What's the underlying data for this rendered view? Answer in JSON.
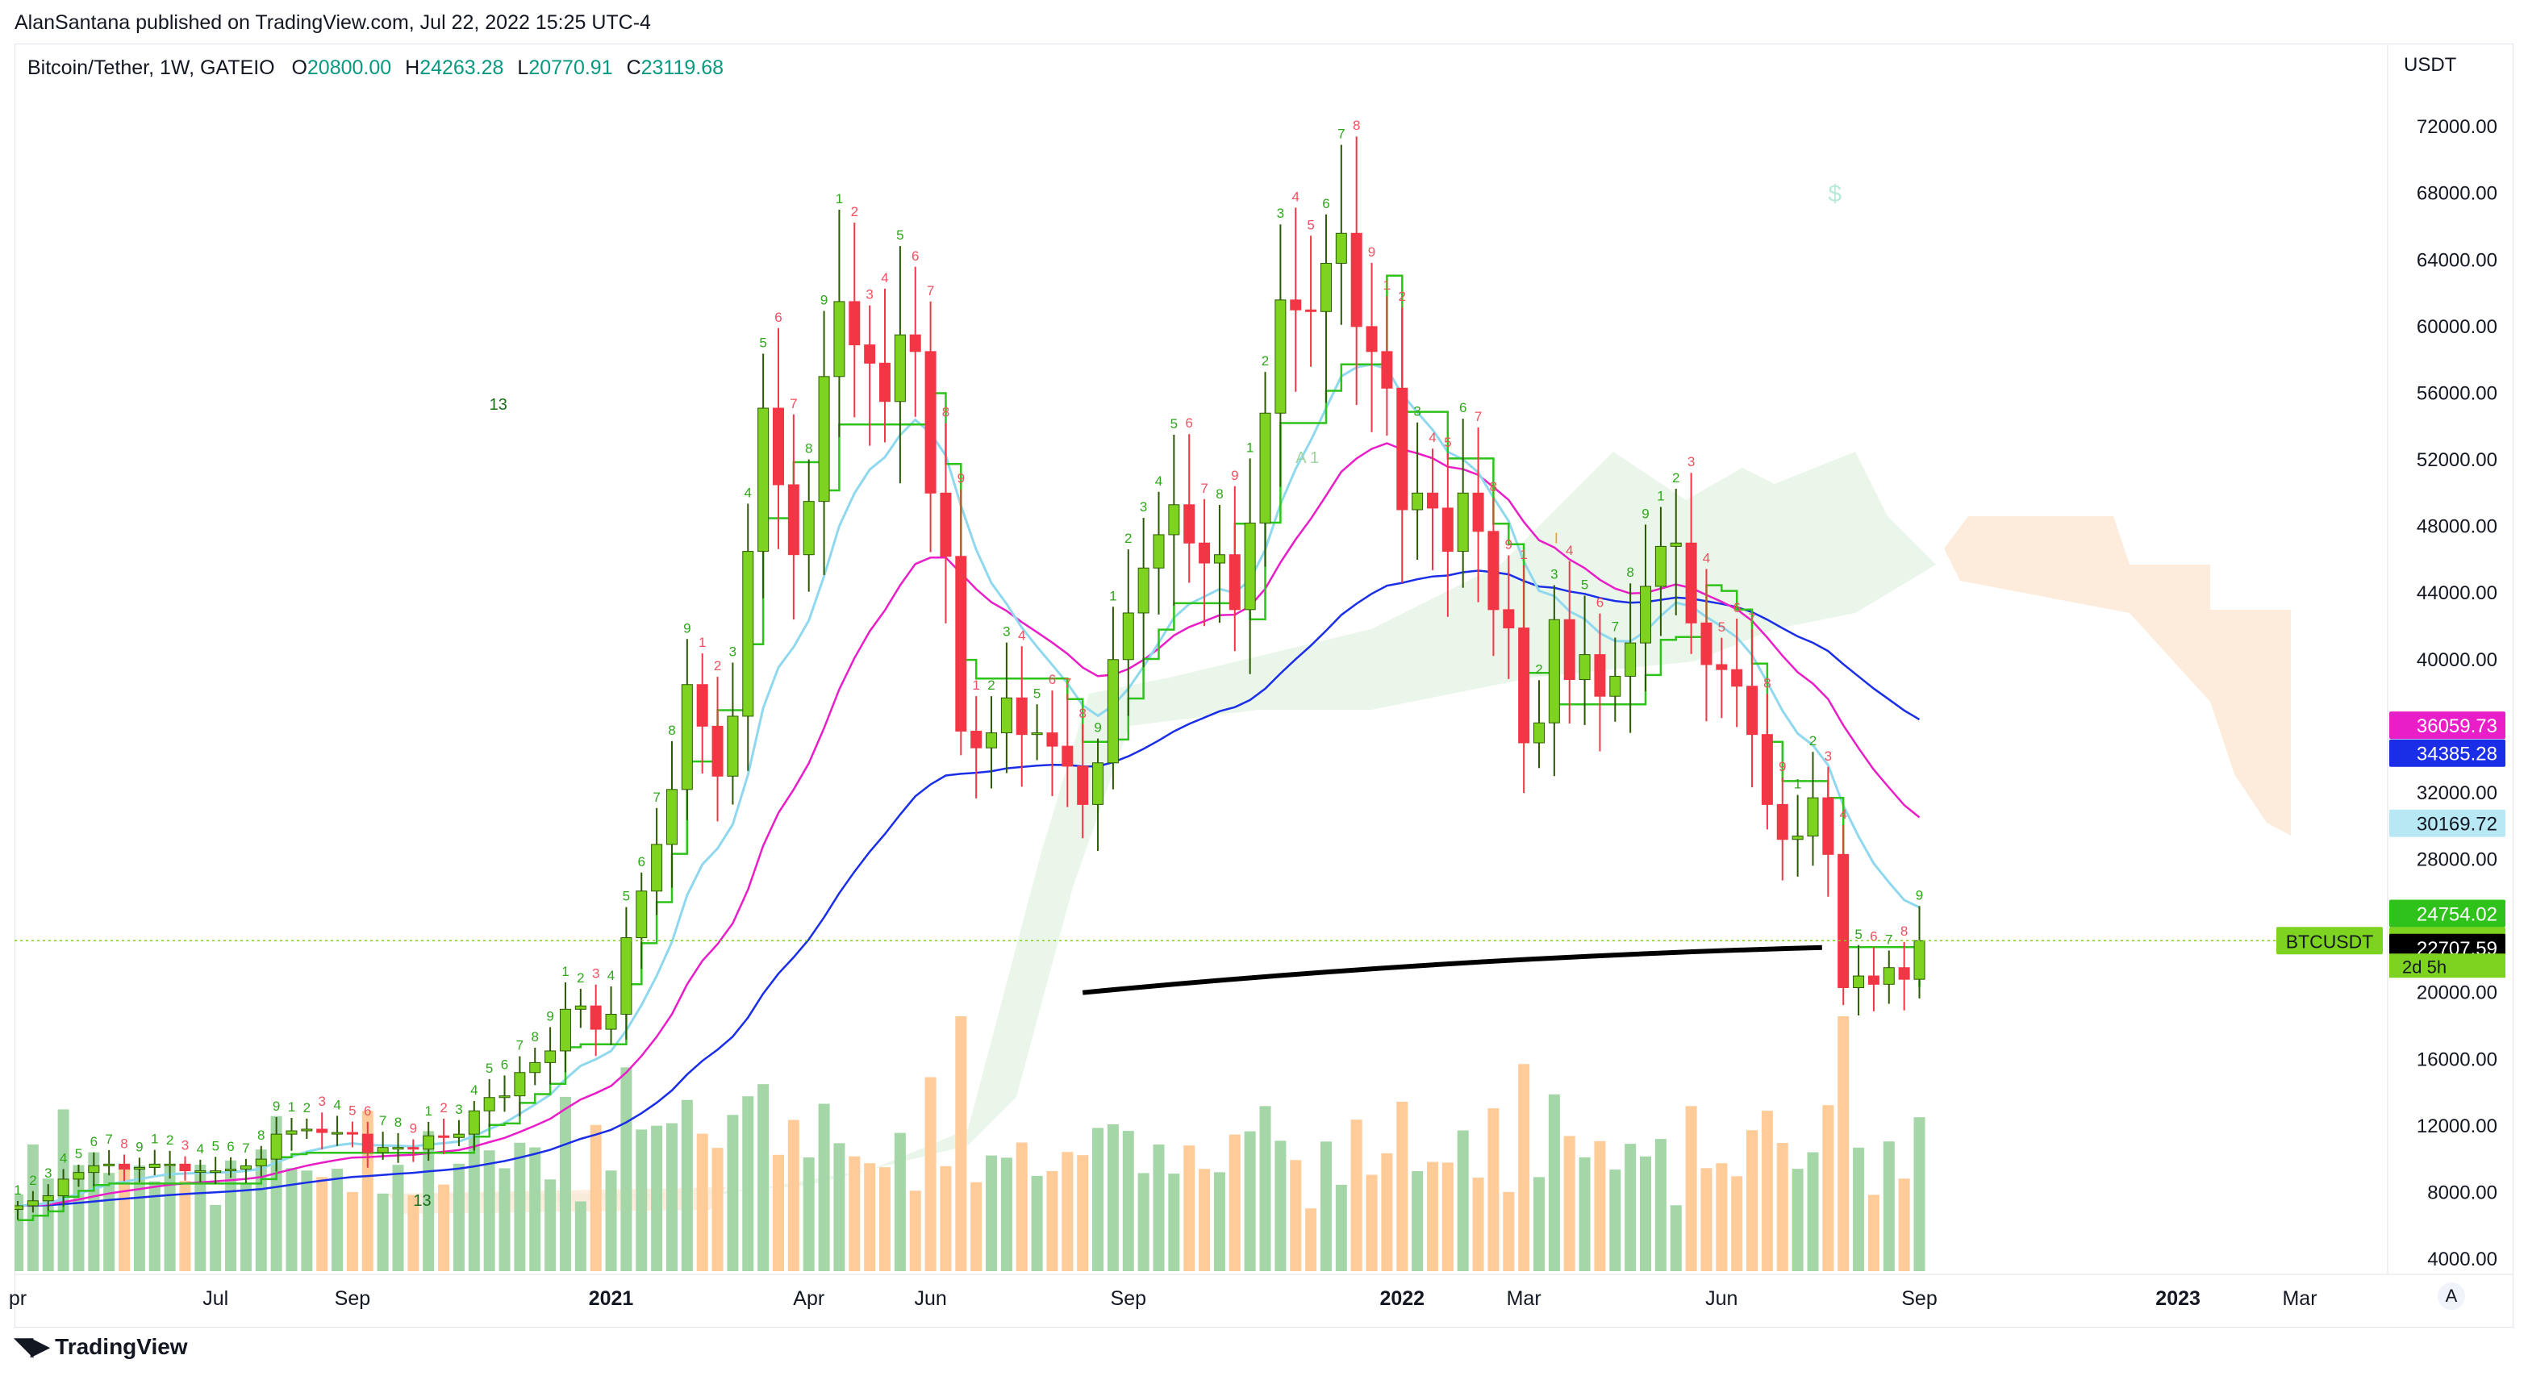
{
  "publisher_line": "AlanSantana published on TradingView.com, Jul 22, 2022 15:25 UTC-4",
  "symbol": {
    "name": "Bitcoin/Tether, 1W, GATEIO",
    "o_label": "O",
    "o_value": "20800.00",
    "h_label": "H",
    "h_value": "24263.28",
    "l_label": "L",
    "l_value": "20770.91",
    "c_label": "C",
    "c_value": "23119.68"
  },
  "footer": {
    "brand": "TradingView"
  },
  "scale_button": "A",
  "colors": {
    "up": "#7ed321",
    "down": "#f23645",
    "vol_up": "#a5d6a7",
    "vol_down": "#ffcc99",
    "ema_pink": "#e91ec8",
    "ema_blue": "#1a2ee8",
    "ema_cyan": "#8fd8ee",
    "trail_green": "#2ec21a",
    "sma_black": "#000000",
    "cloud_green": "#e6f4e6",
    "cloud_orange": "#fde7d2"
  },
  "chart_data": {
    "type": "candlestick",
    "currency_label": "USDT",
    "ylim": [
      4000,
      76000
    ],
    "y_ticks": [
      "72000.00",
      "68000.00",
      "64000.00",
      "60000.00",
      "56000.00",
      "52000.00",
      "48000.00",
      "44000.00",
      "40000.00",
      "36000.00",
      "32000.00",
      "28000.00",
      "24000.00",
      "20000.00",
      "16000.00",
      "12000.00",
      "8000.00",
      "4000.00"
    ],
    "x_ticks": [
      {
        "label": "pr",
        "bold": false,
        "week": 0
      },
      {
        "label": "Jul",
        "bold": false,
        "week": 13
      },
      {
        "label": "Sep",
        "bold": false,
        "week": 22
      },
      {
        "label": "2021",
        "bold": true,
        "week": 39
      },
      {
        "label": "Apr",
        "bold": false,
        "week": 52
      },
      {
        "label": "Jun",
        "bold": false,
        "week": 60
      },
      {
        "label": "Sep",
        "bold": false,
        "week": 73
      },
      {
        "label": "2022",
        "bold": true,
        "week": 91
      },
      {
        "label": "Mar",
        "bold": false,
        "week": 99
      },
      {
        "label": "Jun",
        "bold": false,
        "week": 112
      },
      {
        "label": "Sep",
        "bold": false,
        "week": 125
      },
      {
        "label": "2023",
        "bold": true,
        "week": 142
      },
      {
        "label": "Mar",
        "bold": false,
        "week": 150
      }
    ],
    "close": [
      7200,
      7500,
      7800,
      8800,
      9200,
      9600,
      9700,
      9400,
      9500,
      9700,
      9700,
      9300,
      9300,
      9300,
      9400,
      9600,
      10000,
      11500,
      11700,
      11800,
      11600,
      11600,
      11500,
      10400,
      10700,
      10700,
      10600,
      11400,
      11300,
      11500,
      12900,
      13700,
      13800,
      15200,
      15800,
      16500,
      19000,
      19200,
      17800,
      18700,
      23300,
      26100,
      28900,
      32200,
      38500,
      36000,
      33000,
      36600,
      46500,
      55100,
      50500,
      46300,
      49500,
      57000,
      61500,
      58900,
      57800,
      55500,
      59500,
      58500,
      50000,
      46200,
      35700,
      34700,
      35600,
      37700,
      35500,
      35600,
      34800,
      33600,
      31300,
      33800,
      40000,
      42800,
      45500,
      47500,
      49300,
      47000,
      45800,
      46300,
      43000,
      48200,
      54800,
      61600,
      61000,
      60900,
      63800,
      65600,
      60000,
      58500,
      56300,
      49000,
      50000,
      49100,
      46500,
      50000,
      47700,
      43000,
      41900,
      35000,
      36200,
      42400,
      38800,
      40300,
      37800,
      39000,
      41000,
      44400,
      46800,
      47000,
      42200,
      39700,
      39400,
      38400,
      35500,
      31300,
      29200,
      29400,
      31700,
      28300,
      20300,
      21000,
      20500,
      21500,
      20800,
      23120
    ],
    "sma200_from": [
      70,
      20000
    ],
    "sma200_to": [
      118,
      22707
    ],
    "series": [
      {
        "name": "EMA pink",
        "last": 36059.73,
        "color": "#e91ec8"
      },
      {
        "name": "EMA blue",
        "last": 34385.28,
        "color": "#1a2ee8"
      },
      {
        "name": "EMA cyan",
        "last": 30169.72,
        "color": "#8fd8ee"
      },
      {
        "name": "Trail green",
        "last": 24754.02,
        "color": "#2ec21a"
      }
    ],
    "price_labels": [
      {
        "text": "36059.73",
        "value": 36059.73,
        "bg": "#e91ec8",
        "fg": "#ffffff"
      },
      {
        "text": "34385.28",
        "value": 34385.28,
        "bg": "#1a2ee8",
        "fg": "#ffffff"
      },
      {
        "text": "30169.72",
        "value": 30169.72,
        "bg": "#b8e8f4",
        "fg": "#131722"
      },
      {
        "text": "24754.02",
        "value": 24754.02,
        "bg": "#2ec21a",
        "fg": "#ffffff"
      },
      {
        "text": "23119.68",
        "value": 23119.68,
        "bg": "#7ed321",
        "fg": "#131722"
      },
      {
        "text": "22707.59",
        "value": 22707.59,
        "bg": "#000000",
        "fg": "#ffffff"
      }
    ],
    "countdown": "2d 5h",
    "ticker_tag": "BTCUSDT",
    "annotations": {
      "marker_13": "13",
      "marker_A1": "A 1",
      "marker_I": "I",
      "marker_dollar": "$"
    }
  }
}
